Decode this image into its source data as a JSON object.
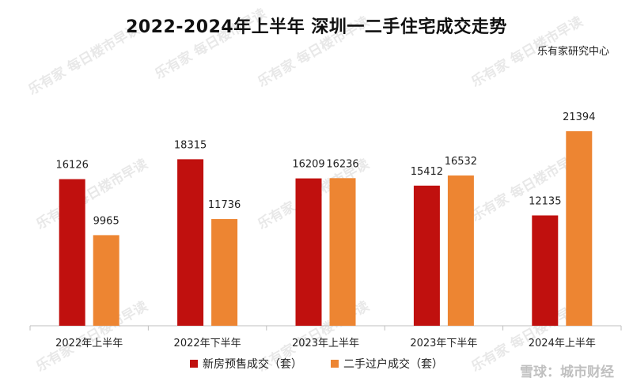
{
  "title": "2022-2024年上半年 深圳一二手住宅成交走势",
  "source_label": "乐有家研究中心",
  "watermark": {
    "logo_text": "乐有家",
    "slogan": "每日楼市早读"
  },
  "brand_watermark": "雪球：城市财经",
  "colors": {
    "new_house": "#C0100E",
    "second_hand": "#ED8532",
    "axis": "#BFBFBF"
  },
  "chart_data": {
    "type": "bar",
    "title": "2022-2024年上半年 深圳一二手住宅成交走势",
    "xlabel": "",
    "ylabel": "",
    "ylim": [
      0,
      25000
    ],
    "grid": false,
    "legend_position": "bottom",
    "categories": [
      "2022年上半年",
      "2022年下半年",
      "2023年上半年",
      "2023年下半年",
      "2024年上半年"
    ],
    "series": [
      {
        "name": "新房预售成交（套）",
        "values": [
          16126,
          18315,
          16209,
          15412,
          12135
        ]
      },
      {
        "name": "二手过户成交（套）",
        "values": [
          9965,
          11736,
          16236,
          16532,
          21394
        ]
      }
    ]
  }
}
